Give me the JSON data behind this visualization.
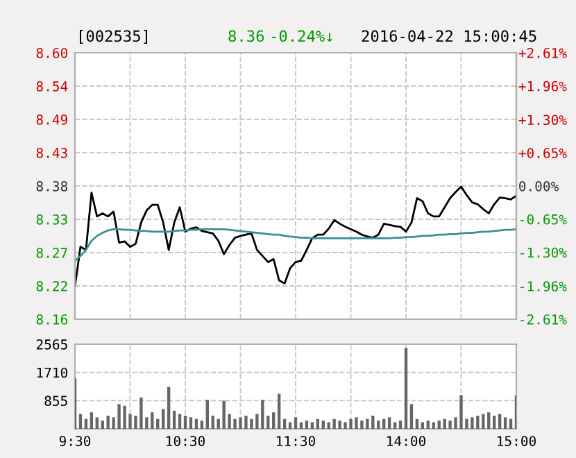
{
  "chart_data": [
    {
      "type": "line",
      "title": "[002535]",
      "annotations": [
        "8.36",
        "-0.24%↓",
        "2016-04-22 15:00:45"
      ],
      "categories": [
        null,
        null,
        null,
        null,
        null,
        null,
        null,
        null,
        null,
        null,
        null,
        null,
        null,
        null,
        null,
        null,
        null,
        null,
        null,
        null,
        null,
        null,
        null,
        null,
        null,
        null,
        null,
        null,
        null,
        null,
        null,
        null,
        null,
        null,
        null,
        null,
        null,
        null,
        null,
        null,
        null,
        null,
        null,
        null,
        null,
        null,
        null,
        null,
        null,
        null,
        null,
        null,
        null,
        null,
        null,
        null,
        null,
        null,
        null,
        null,
        null,
        null,
        null,
        null,
        null,
        null,
        null,
        null,
        null,
        null,
        null,
        null,
        null,
        null,
        null,
        null,
        null,
        null,
        null,
        null,
        null
      ],
      "ylim": [
        8.1612,
        8.5988
      ],
      "yticks": [
        {
          "value": 8.1612,
          "label": "8.16"
        },
        {
          "value": 8.2159,
          "label": "8.22"
        },
        {
          "value": 8.2706,
          "label": "8.27"
        },
        {
          "value": 8.3253,
          "label": "8.33"
        },
        {
          "value": 8.38,
          "label": "8.38"
        },
        {
          "value": 8.4347,
          "label": "8.43"
        },
        {
          "value": 8.4894,
          "label": "8.49"
        },
        {
          "value": 8.5441,
          "label": "8.54"
        },
        {
          "value": 8.5988,
          "label": "8.60"
        }
      ],
      "y2lim": [
        -2.61,
        2.61
      ],
      "y2ticks": [
        {
          "value": -2.61,
          "label": "-2.61%"
        },
        {
          "value": -1.96,
          "label": "-1.96%"
        },
        {
          "value": -1.3,
          "label": "-1.30%"
        },
        {
          "value": -0.65,
          "label": "-0.65%"
        },
        {
          "value": 0,
          "label": "0.00%"
        },
        {
          "value": 0.65,
          "label": "+0.65%"
        },
        {
          "value": 1.3,
          "label": "+1.30%"
        },
        {
          "value": 1.96,
          "label": "+1.96%"
        },
        {
          "value": 2.61,
          "label": "+2.61%"
        }
      ],
      "tick_labels": "y",
      "grid": true,
      "line_style": "solid",
      "marker": "none",
      "series": [
        {
          "color": "#000000",
          "values": [
            8.215,
            8.28,
            8.275,
            8.369,
            8.33,
            8.335,
            8.33,
            8.338,
            8.287,
            8.289,
            8.28,
            8.285,
            8.32,
            8.34,
            8.349,
            8.349,
            8.32,
            8.275,
            8.32,
            8.345,
            8.305,
            8.31,
            8.312,
            8.306,
            8.304,
            8.302,
            8.29,
            8.268,
            8.283,
            8.295,
            8.298,
            8.3,
            8.302,
            8.275,
            8.265,
            8.255,
            8.26,
            8.225,
            8.22,
            8.245,
            8.255,
            8.257,
            8.275,
            8.294,
            8.3,
            8.3,
            8.31,
            8.324,
            8.318,
            8.313,
            8.309,
            8.305,
            8.3,
            8.297,
            8.295,
            8.3,
            8.318,
            8.316,
            8.314,
            8.313,
            8.305,
            8.32,
            8.36,
            8.355,
            8.335,
            8.33,
            8.33,
            8.345,
            8.36,
            8.37,
            8.379,
            8.365,
            8.353,
            8.35,
            8.342,
            8.335,
            8.35,
            8.361,
            8.36,
            8.358,
            8.364
          ]
        },
        {
          "color": "#3a8f8f",
          "values": [
            8.257,
            8.265,
            8.275,
            8.29,
            8.298,
            8.303,
            8.307,
            8.309,
            8.309,
            8.308,
            8.308,
            8.307,
            8.306,
            8.306,
            8.305,
            8.305,
            8.305,
            8.305,
            8.306,
            8.307,
            8.307,
            8.308,
            8.308,
            8.309,
            8.309,
            8.309,
            8.309,
            8.309,
            8.308,
            8.307,
            8.306,
            8.305,
            8.304,
            8.303,
            8.302,
            8.301,
            8.3,
            8.3,
            8.298,
            8.297,
            8.296,
            8.295,
            8.295,
            8.294,
            8.294,
            8.294,
            8.294,
            8.294,
            8.294,
            8.294,
            8.294,
            8.294,
            8.294,
            8.294,
            8.294,
            8.294,
            8.294,
            8.294,
            8.295,
            8.295,
            8.296,
            8.296,
            8.297,
            8.298,
            8.298,
            8.299,
            8.3,
            8.3,
            8.301,
            8.301,
            8.302,
            8.303,
            8.303,
            8.304,
            8.305,
            8.305,
            8.306,
            8.307,
            8.308,
            8.308,
            8.309
          ]
        }
      ]
    },
    {
      "type": "bar",
      "categories": [
        "9:30",
        null,
        null,
        null,
        null,
        null,
        null,
        null,
        null,
        null,
        null,
        null,
        null,
        null,
        null,
        null,
        null,
        null,
        null,
        null,
        "10:30",
        null,
        null,
        null,
        null,
        null,
        null,
        null,
        null,
        null,
        null,
        null,
        null,
        null,
        null,
        null,
        null,
        null,
        null,
        null,
        "11:30",
        null,
        null,
        null,
        null,
        null,
        null,
        null,
        null,
        null,
        null,
        null,
        null,
        null,
        null,
        null,
        null,
        null,
        null,
        null,
        "14:00",
        null,
        null,
        null,
        null,
        null,
        null,
        null,
        null,
        null,
        null,
        null,
        null,
        null,
        null,
        null,
        null,
        null,
        null,
        null,
        "15:00"
      ],
      "ylim": [
        0,
        2565
      ],
      "yticks": [
        {
          "value": 0,
          "label": null
        },
        855,
        1710,
        2565
      ],
      "grid": true,
      "series": [
        {
          "color": "#666666",
          "values": [
            1530,
            450,
            300,
            500,
            350,
            250,
            400,
            350,
            750,
            700,
            450,
            400,
            950,
            350,
            500,
            300,
            600,
            1270,
            550,
            450,
            400,
            350,
            300,
            250,
            880,
            400,
            300,
            850,
            450,
            300,
            350,
            400,
            300,
            450,
            880,
            400,
            500,
            1060,
            300,
            200,
            350,
            200,
            250,
            200,
            300,
            250,
            200,
            300,
            250,
            200,
            300,
            350,
            250,
            300,
            400,
            250,
            300,
            350,
            200,
            250,
            2450,
            750,
            300,
            200,
            250,
            200,
            250,
            300,
            250,
            350,
            1020,
            300,
            350,
            400,
            450,
            500,
            400,
            450,
            350,
            300,
            1020
          ]
        }
      ]
    }
  ]
}
